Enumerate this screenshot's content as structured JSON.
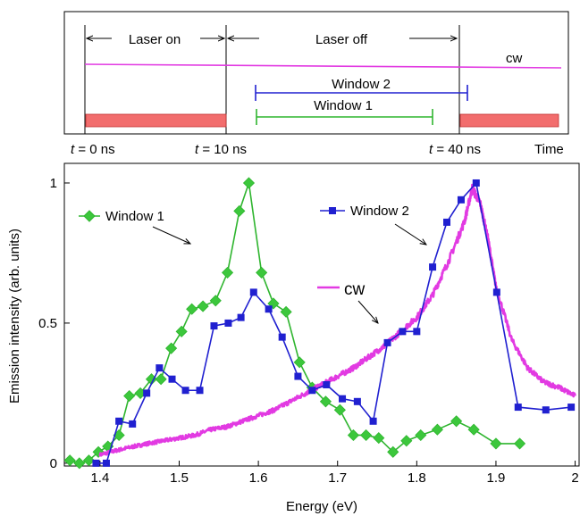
{
  "timing_diagram": {
    "labels": {
      "laser_on": "Laser on",
      "laser_off": "Laser off",
      "cw": "cw",
      "window2": "Window 2",
      "window1": "Window 1",
      "t0_var": "t",
      "t0_val": " = 0 ns",
      "t10_var": "t",
      "t10_val": " = 10 ns",
      "t40_var": "t",
      "t40_val": " = 40 ns",
      "time": "Time"
    },
    "times_ns": {
      "t0": 0,
      "t10": 10,
      "t40": 40
    },
    "colors": {
      "pulse": "#f26d6d",
      "cw": "#e23ae2",
      "window1": "#2fb52f",
      "window2": "#2020d0"
    }
  },
  "chart_data": {
    "type": "line",
    "xlabel": "Energy (eV)",
    "ylabel": "Emission intensity (arb. units)",
    "xlim": [
      1.355,
      2.005
    ],
    "ylim": [
      -0.01,
      1.07
    ],
    "xticks": [
      "1.4",
      "1.5",
      "1.6",
      "1.7",
      "1.8",
      "1.9",
      "2"
    ],
    "xtick_values": [
      1.4,
      1.5,
      1.6,
      1.7,
      1.8,
      1.9,
      2.0
    ],
    "yticks": [
      "0",
      "0.5",
      "1"
    ],
    "ytick_values": [
      0,
      0.5,
      1
    ],
    "series": [
      {
        "name": "Window 1",
        "color": "#2fb52f",
        "marker": "diamond",
        "x": [
          1.362,
          1.374,
          1.386,
          1.398,
          1.41,
          1.424,
          1.437,
          1.451,
          1.465,
          1.477,
          1.49,
          1.503,
          1.516,
          1.53,
          1.546,
          1.561,
          1.576,
          1.588,
          1.604,
          1.619,
          1.635,
          1.652,
          1.668,
          1.685,
          1.703,
          1.72,
          1.736,
          1.752,
          1.77,
          1.787,
          1.805,
          1.826,
          1.85,
          1.872,
          1.9,
          1.93
        ],
        "y": [
          0.01,
          0.0,
          0.01,
          0.04,
          0.06,
          0.1,
          0.24,
          0.25,
          0.3,
          0.3,
          0.41,
          0.47,
          0.55,
          0.56,
          0.58,
          0.68,
          0.9,
          1.0,
          0.68,
          0.57,
          0.54,
          0.36,
          0.27,
          0.22,
          0.19,
          0.1,
          0.1,
          0.09,
          0.04,
          0.08,
          0.1,
          0.12,
          0.15,
          0.12,
          0.07,
          0.07
        ]
      },
      {
        "name": "Window 2",
        "color": "#2020d0",
        "marker": "square",
        "x": [
          1.395,
          1.408,
          1.424,
          1.441,
          1.459,
          1.475,
          1.491,
          1.508,
          1.526,
          1.544,
          1.562,
          1.578,
          1.594,
          1.613,
          1.63,
          1.65,
          1.668,
          1.686,
          1.706,
          1.725,
          1.745,
          1.763,
          1.782,
          1.8,
          1.82,
          1.838,
          1.856,
          1.875,
          1.901,
          1.928,
          1.963,
          1.995
        ],
        "y": [
          0.0,
          0.0,
          0.15,
          0.14,
          0.25,
          0.34,
          0.3,
          0.26,
          0.26,
          0.49,
          0.5,
          0.52,
          0.61,
          0.55,
          0.45,
          0.31,
          0.26,
          0.28,
          0.23,
          0.22,
          0.15,
          0.43,
          0.47,
          0.47,
          0.7,
          0.86,
          0.94,
          1.0,
          0.61,
          0.2,
          0.19,
          0.2
        ]
      },
      {
        "name": "cw",
        "color": "#e23ae2",
        "marker": "none",
        "x": [
          1.4,
          1.42,
          1.44,
          1.46,
          1.48,
          1.5,
          1.52,
          1.54,
          1.56,
          1.58,
          1.6,
          1.62,
          1.64,
          1.66,
          1.68,
          1.7,
          1.72,
          1.74,
          1.76,
          1.78,
          1.8,
          1.82,
          1.84,
          1.86,
          1.87,
          1.88,
          1.89,
          1.9,
          1.92,
          1.94,
          1.96,
          1.98,
          2.0
        ],
        "y": [
          0.03,
          0.045,
          0.058,
          0.07,
          0.08,
          0.09,
          0.1,
          0.12,
          0.13,
          0.15,
          0.17,
          0.19,
          0.22,
          0.25,
          0.28,
          0.31,
          0.34,
          0.38,
          0.42,
          0.47,
          0.52,
          0.6,
          0.72,
          0.86,
          0.98,
          0.93,
          0.8,
          0.63,
          0.44,
          0.34,
          0.29,
          0.27,
          0.24
        ]
      }
    ],
    "legend": [
      {
        "label": "Window 1",
        "position": "upper-left"
      },
      {
        "label": "Window 2",
        "position": "upper-right"
      },
      {
        "label": "cw",
        "position": "middle"
      }
    ]
  }
}
